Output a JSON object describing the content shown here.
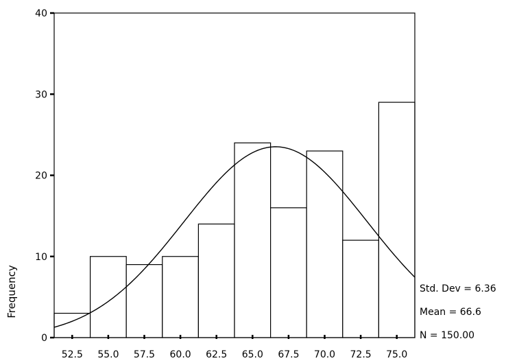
{
  "chart_data": {
    "type": "bar",
    "subtype": "histogram",
    "ylabel": "Frequency",
    "xlabel": "",
    "ylim": [
      0,
      40
    ],
    "yticks": [
      "0",
      "10",
      "20",
      "30",
      "40"
    ],
    "xlim": [
      51.25,
      76.25
    ],
    "xticks": [
      "52.5",
      "55.0",
      "57.5",
      "60.0",
      "62.5",
      "65.0",
      "67.5",
      "70.0",
      "72.5",
      "75.0"
    ],
    "bin_width": 2.5,
    "categories": [
      "52.5",
      "55.0",
      "57.5",
      "60.0",
      "62.5",
      "65.0",
      "67.5",
      "70.0",
      "72.5",
      "75.0"
    ],
    "values": [
      3,
      10,
      9,
      10,
      14,
      24,
      16,
      23,
      12,
      29
    ],
    "normal_curve": {
      "mean": 66.6,
      "std_dev": 6.36,
      "n": 150
    },
    "grid": false,
    "stats": [
      {
        "label": "Std. Dev = 6.36"
      },
      {
        "label": "Mean = 66.6"
      },
      {
        "label": "N = 150.00"
      }
    ]
  }
}
